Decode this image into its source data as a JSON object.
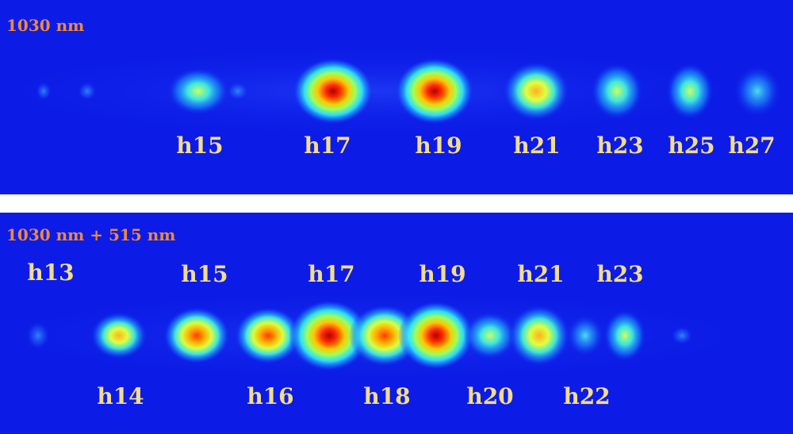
{
  "colors": {
    "background": "#0c1ce6",
    "separator": "#ffffff",
    "title": "#f0883a",
    "label": "#f3dc8c"
  },
  "panels": [
    {
      "title": "1030 nm",
      "harmonics": [
        {
          "label": "h15",
          "intensity": 0.55
        },
        {
          "label": "h17",
          "intensity": 1.0
        },
        {
          "label": "h19",
          "intensity": 1.0
        },
        {
          "label": "h21",
          "intensity": 0.75
        },
        {
          "label": "h23",
          "intensity": 0.55
        },
        {
          "label": "h25",
          "intensity": 0.5
        },
        {
          "label": "h27",
          "intensity": 0.35
        }
      ]
    },
    {
      "title": "1030 nm + 515 nm",
      "harmonics": [
        {
          "label": "h13",
          "intensity": 0.2
        },
        {
          "label": "h14",
          "intensity": 0.6
        },
        {
          "label": "h15",
          "intensity": 0.85
        },
        {
          "label": "h16",
          "intensity": 0.85
        },
        {
          "label": "h17",
          "intensity": 1.0
        },
        {
          "label": "h18",
          "intensity": 0.85
        },
        {
          "label": "h19",
          "intensity": 1.0
        },
        {
          "label": "h20",
          "intensity": 0.45
        },
        {
          "label": "h21",
          "intensity": 0.65
        },
        {
          "label": "h22",
          "intensity": 0.3
        },
        {
          "label": "h23",
          "intensity": 0.45
        }
      ]
    }
  ]
}
